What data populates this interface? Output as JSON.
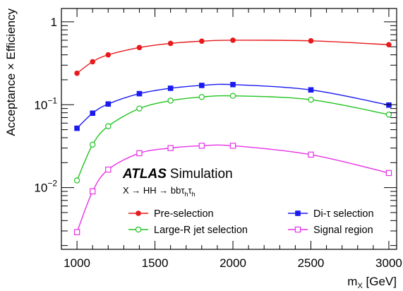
{
  "chart_data": {
    "type": "line",
    "xlabel_base": "m",
    "xlabel_sub": "X",
    "xlabel_unit": " [GeV]",
    "ylabel": "Acceptance × Efficiency",
    "xlim": [
      900,
      3050
    ],
    "ylim": [
      0.0018,
      1.45
    ],
    "yscale": "log",
    "x_ticks": [
      1000,
      1500,
      2000,
      2500,
      3000
    ],
    "y_ticks": [
      {
        "value": 0.01,
        "base": "10",
        "exp": "−2"
      },
      {
        "value": 0.1,
        "base": "10",
        "exp": "−1"
      },
      {
        "value": 1,
        "base": "1",
        "exp": ""
      }
    ],
    "annotation": {
      "experiment": "ATLAS",
      "label": "Simulation",
      "process": "X → HH → bbτ",
      "process_tail": "τ",
      "process_sub": "h"
    },
    "series": [
      {
        "name": "Pre-selection",
        "color": "#e8191b",
        "marker": "filled-circle",
        "x": [
          1000,
          1100,
          1200,
          1400,
          1600,
          1800,
          2000,
          2500,
          3000
        ],
        "y": [
          0.24,
          0.33,
          0.4,
          0.49,
          0.55,
          0.585,
          0.6,
          0.59,
          0.53
        ]
      },
      {
        "name": "Di-τ selection",
        "color": "#1a1af0",
        "marker": "filled-square",
        "x": [
          1000,
          1100,
          1200,
          1400,
          1600,
          1800,
          2000,
          2500,
          3000
        ],
        "y": [
          0.052,
          0.079,
          0.102,
          0.136,
          0.158,
          0.171,
          0.175,
          0.151,
          0.099
        ]
      },
      {
        "name": "Large-R jet selection",
        "color": "#1fc41f",
        "marker": "open-circle",
        "x": [
          1000,
          1100,
          1200,
          1400,
          1600,
          1800,
          2000,
          2500,
          3000
        ],
        "y": [
          0.0122,
          0.033,
          0.055,
          0.09,
          0.112,
          0.124,
          0.128,
          0.115,
          0.076
        ]
      },
      {
        "name": "Signal region",
        "color": "#e632e6",
        "marker": "open-square",
        "x": [
          1000,
          1100,
          1200,
          1400,
          1600,
          1800,
          2000,
          2500,
          3000
        ],
        "y": [
          0.0029,
          0.009,
          0.0165,
          0.026,
          0.03,
          0.032,
          0.032,
          0.025,
          0.015
        ]
      }
    ],
    "legend": {
      "placement": "bottom",
      "columns": 2
    }
  }
}
